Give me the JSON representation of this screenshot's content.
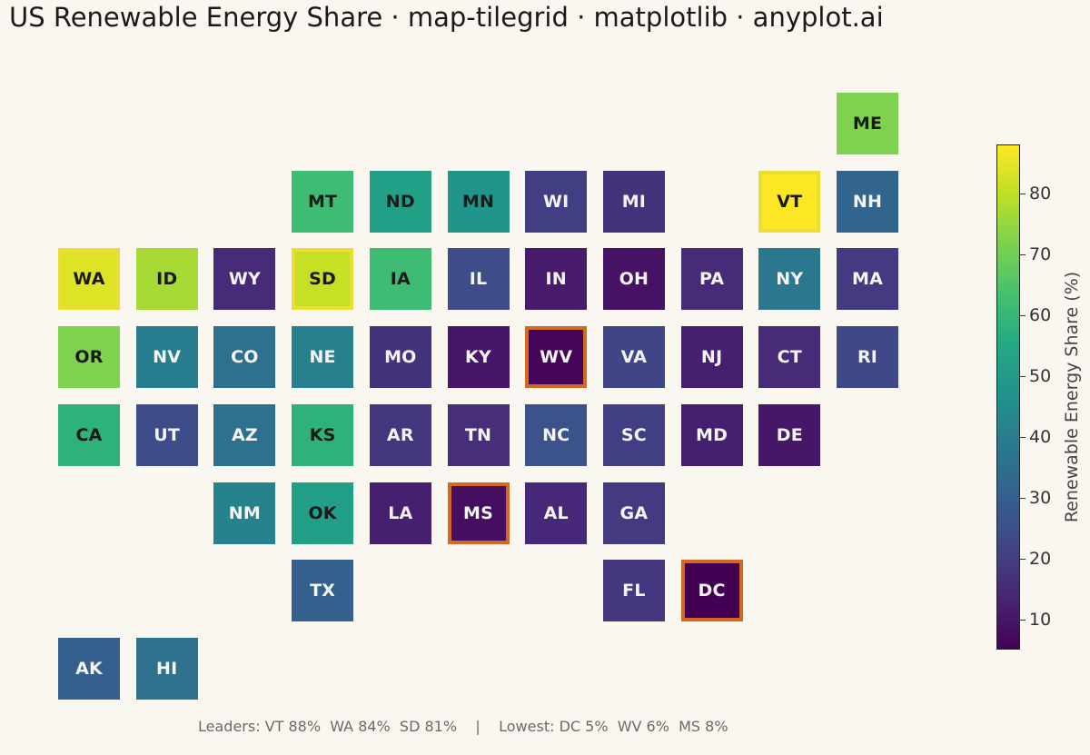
{
  "title": "US Renewable Energy Share · map-tilegrid · matplotlib · anyplot.ai",
  "footer": {
    "text": "Leaders: VT 88%  WA 84%  SD 81%    |    Lowest: DC 5%  WV 6%  MS 8%"
  },
  "colors": {
    "background": "#FAF7F0",
    "leader_outline": "#EADD35",
    "lowest_outline": "#D2691E",
    "colormap": "viridis"
  },
  "chart_data": {
    "type": "heatmap",
    "title": "US Renewable Energy Share · map-tilegrid · matplotlib · anyplot.ai",
    "colorbar_label": "Renewable Energy Share (%)",
    "colorbar_range": [
      5,
      88
    ],
    "colorbar_ticks": [
      10,
      20,
      30,
      40,
      50,
      60,
      70,
      80
    ],
    "leaders": [
      "VT",
      "WA",
      "SD"
    ],
    "lowest": [
      "DC",
      "WV",
      "MS"
    ],
    "tiles": [
      {
        "state": "ME",
        "row": 0,
        "col": 10,
        "value": 72
      },
      {
        "state": "MT",
        "row": 1,
        "col": 3,
        "value": 62
      },
      {
        "state": "ND",
        "row": 1,
        "col": 4,
        "value": 52
      },
      {
        "state": "MN",
        "row": 1,
        "col": 5,
        "value": 48
      },
      {
        "state": "WI",
        "row": 1,
        "col": 6,
        "value": 20
      },
      {
        "state": "MI",
        "row": 1,
        "col": 7,
        "value": 17
      },
      {
        "state": "VT",
        "row": 1,
        "col": 9,
        "value": 88
      },
      {
        "state": "NH",
        "row": 1,
        "col": 10,
        "value": 32
      },
      {
        "state": "WA",
        "row": 2,
        "col": 0,
        "value": 84
      },
      {
        "state": "ID",
        "row": 2,
        "col": 1,
        "value": 77
      },
      {
        "state": "WY",
        "row": 2,
        "col": 2,
        "value": 15
      },
      {
        "state": "SD",
        "row": 2,
        "col": 3,
        "value": 81
      },
      {
        "state": "IA",
        "row": 2,
        "col": 4,
        "value": 62
      },
      {
        "state": "IL",
        "row": 2,
        "col": 5,
        "value": 24
      },
      {
        "state": "IN",
        "row": 2,
        "col": 6,
        "value": 11
      },
      {
        "state": "OH",
        "row": 2,
        "col": 7,
        "value": 9
      },
      {
        "state": "PA",
        "row": 2,
        "col": 8,
        "value": 15
      },
      {
        "state": "NY",
        "row": 2,
        "col": 9,
        "value": 38
      },
      {
        "state": "MA",
        "row": 2,
        "col": 10,
        "value": 19
      },
      {
        "state": "OR",
        "row": 3,
        "col": 0,
        "value": 72
      },
      {
        "state": "NV",
        "row": 3,
        "col": 1,
        "value": 40
      },
      {
        "state": "CO",
        "row": 3,
        "col": 2,
        "value": 36
      },
      {
        "state": "NE",
        "row": 3,
        "col": 3,
        "value": 41
      },
      {
        "state": "MO",
        "row": 3,
        "col": 4,
        "value": 17
      },
      {
        "state": "KY",
        "row": 3,
        "col": 5,
        "value": 10
      },
      {
        "state": "WV",
        "row": 3,
        "col": 6,
        "value": 6
      },
      {
        "state": "VA",
        "row": 3,
        "col": 7,
        "value": 22
      },
      {
        "state": "NJ",
        "row": 3,
        "col": 8,
        "value": 12
      },
      {
        "state": "CT",
        "row": 3,
        "col": 9,
        "value": 15
      },
      {
        "state": "RI",
        "row": 3,
        "col": 10,
        "value": 23
      },
      {
        "state": "CA",
        "row": 4,
        "col": 0,
        "value": 58
      },
      {
        "state": "UT",
        "row": 4,
        "col": 1,
        "value": 24
      },
      {
        "state": "AZ",
        "row": 4,
        "col": 2,
        "value": 36
      },
      {
        "state": "KS",
        "row": 4,
        "col": 3,
        "value": 58
      },
      {
        "state": "AR",
        "row": 4,
        "col": 4,
        "value": 18
      },
      {
        "state": "TN",
        "row": 4,
        "col": 5,
        "value": 16
      },
      {
        "state": "NC",
        "row": 4,
        "col": 6,
        "value": 26
      },
      {
        "state": "SC",
        "row": 4,
        "col": 7,
        "value": 20
      },
      {
        "state": "MD",
        "row": 4,
        "col": 8,
        "value": 12
      },
      {
        "state": "DE",
        "row": 4,
        "col": 9,
        "value": 10
      },
      {
        "state": "NM",
        "row": 5,
        "col": 2,
        "value": 42
      },
      {
        "state": "OK",
        "row": 5,
        "col": 3,
        "value": 52
      },
      {
        "state": "LA",
        "row": 5,
        "col": 4,
        "value": 12
      },
      {
        "state": "MS",
        "row": 5,
        "col": 5,
        "value": 8
      },
      {
        "state": "AL",
        "row": 5,
        "col": 6,
        "value": 14
      },
      {
        "state": "GA",
        "row": 5,
        "col": 7,
        "value": 19
      },
      {
        "state": "TX",
        "row": 6,
        "col": 3,
        "value": 30
      },
      {
        "state": "FL",
        "row": 6,
        "col": 7,
        "value": 18
      },
      {
        "state": "DC",
        "row": 6,
        "col": 8,
        "value": 5
      },
      {
        "state": "AK",
        "row": 7,
        "col": 0,
        "value": 30
      },
      {
        "state": "HI",
        "row": 7,
        "col": 1,
        "value": 36
      }
    ]
  }
}
